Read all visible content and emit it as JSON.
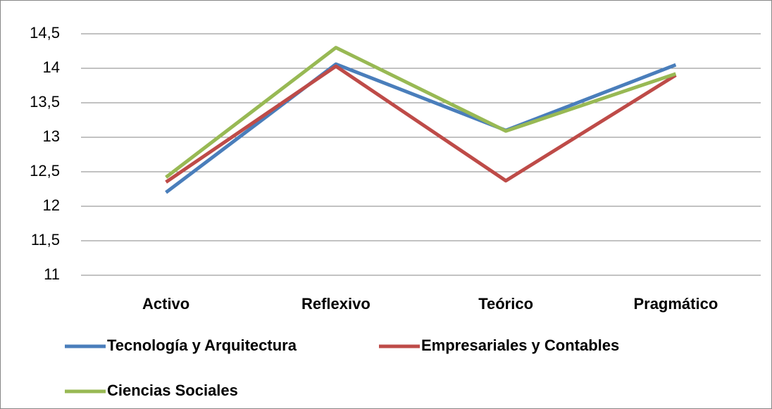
{
  "chart_data": {
    "type": "line",
    "categories": [
      "Activo",
      "Reflexivo",
      "Teórico",
      "Pragmático"
    ],
    "series": [
      {
        "name": "Tecnología y Arquitectura",
        "color": "#4a7ebb",
        "values": [
          12.2,
          14.06,
          13.1,
          14.05
        ]
      },
      {
        "name": "Empresariales y Contables",
        "color": "#be4b48",
        "values": [
          12.35,
          14.03,
          12.37,
          13.9
        ]
      },
      {
        "name": "Ciencias Sociales",
        "color": "#98b954",
        "values": [
          12.42,
          14.3,
          13.09,
          13.92
        ]
      }
    ],
    "ylim": [
      11,
      14.5
    ],
    "yticks": [
      11,
      {
        "value": 11.5,
        "label": "11,5"
      },
      12,
      {
        "value": 12.5,
        "label": "12,5"
      },
      13,
      {
        "value": 13.5,
        "label": "13,5"
      },
      14,
      {
        "value": 14.5,
        "label": "14,5"
      }
    ],
    "grid": true,
    "legend": "bottom"
  }
}
